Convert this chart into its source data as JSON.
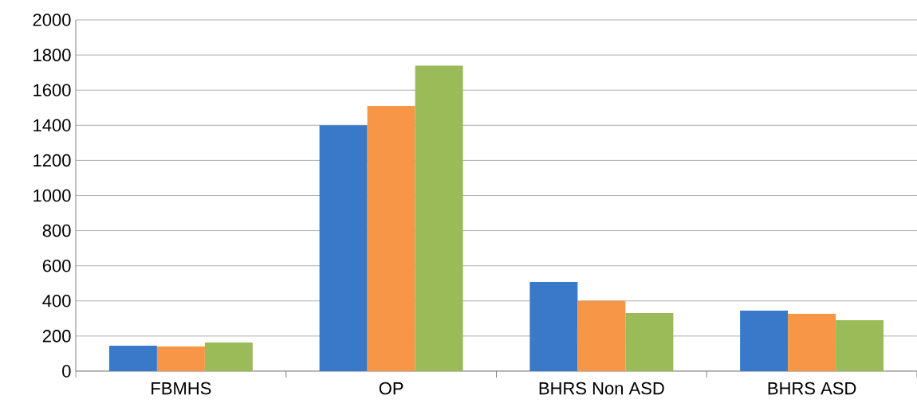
{
  "chart_data": {
    "type": "bar",
    "categories": [
      "FBMHS",
      "OP",
      "BHRS Non ASD",
      "BHRS ASD"
    ],
    "series": [
      {
        "color": "#3a78c9",
        "values": [
          145,
          1400,
          508,
          345
        ]
      },
      {
        "color": "#f79646",
        "values": [
          140,
          1510,
          400,
          327
        ]
      },
      {
        "color": "#9bbb59",
        "values": [
          163,
          1740,
          331,
          290
        ]
      }
    ],
    "ylim": [
      0,
      2000
    ],
    "yticks": [
      0,
      200,
      400,
      600,
      800,
      1000,
      1200,
      1400,
      1600,
      1800,
      2000
    ],
    "grid": "y"
  }
}
